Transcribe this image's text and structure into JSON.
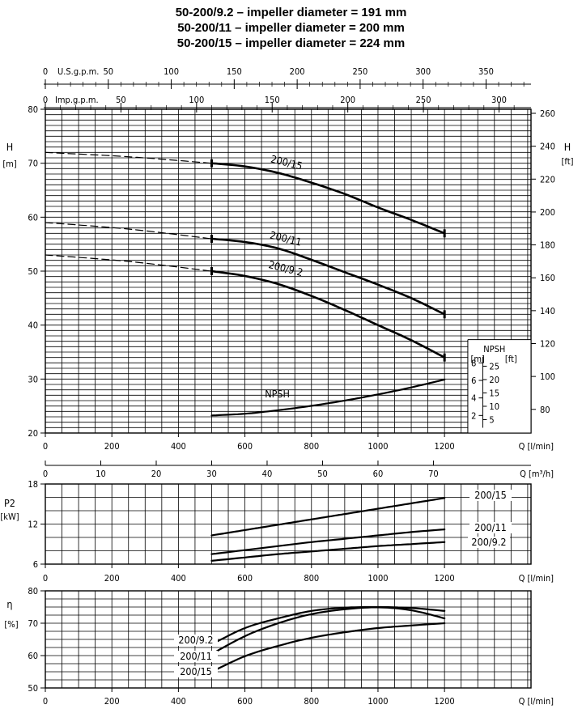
{
  "titles": [
    "50-200/9.2 – impeller diameter = 191 mm",
    "50-200/11 – impeller diameter = 200 mm",
    "50-200/15 – impeller diameter = 224 mm"
  ],
  "top_axes": {
    "usgpm": {
      "label": "U.S.g.p.m.",
      "zero": "0",
      "ticks": [
        50,
        100,
        150,
        200,
        250,
        300,
        350
      ]
    },
    "impgpm": {
      "label": "Imp.g.p.m.",
      "zero": "0",
      "ticks": [
        50,
        100,
        150,
        200,
        250,
        300
      ]
    }
  },
  "chart_data": [
    {
      "type": "line",
      "name": "head",
      "xlabel": "Q [l/min]",
      "ylabel": "H [m]",
      "ylabel_right": "H [ft]",
      "xlim": [
        0,
        1460
      ],
      "ylim": [
        20,
        80
      ],
      "x_ticks": [
        0,
        200,
        400,
        600,
        800,
        1000,
        1200
      ],
      "y_ticks": [
        20,
        30,
        40,
        50,
        60,
        70,
        80
      ],
      "y_ticks_ft": [
        80,
        100,
        120,
        140,
        160,
        180,
        200,
        220,
        240,
        260
      ],
      "m3h_ticks": [
        0,
        10,
        20,
        30,
        40,
        50,
        60,
        70
      ],
      "m3h_label": "Q [m³/h]",
      "grid": true,
      "series": [
        {
          "name": "200/15",
          "dashed_x": [
            0,
            500
          ],
          "x": [
            500,
            600,
            700,
            800,
            900,
            1000,
            1100,
            1200
          ],
          "y": [
            70,
            69.4,
            68.2,
            66.4,
            64.3,
            61.8,
            59.5,
            57
          ]
        },
        {
          "name": "200/11",
          "dashed_x": [
            0,
            500
          ],
          "x": [
            500,
            600,
            700,
            800,
            900,
            1000,
            1100,
            1200
          ],
          "y": [
            56,
            55.4,
            54.2,
            52.1,
            49.8,
            47.5,
            45,
            42
          ]
        },
        {
          "name": "200/9.2",
          "dashed_x": [
            0,
            500
          ],
          "x": [
            500,
            600,
            700,
            800,
            900,
            1000,
            1100,
            1200
          ],
          "y": [
            50,
            49.1,
            47.6,
            45.4,
            42.8,
            40,
            37.2,
            34
          ]
        },
        {
          "name": "NPSH",
          "x": [
            500,
            600,
            700,
            800,
            900,
            1000,
            1100,
            1200
          ],
          "npsh_m": [
            2,
            2.2,
            2.6,
            3.1,
            3.7,
            4.4,
            5.2,
            6.1
          ]
        }
      ],
      "shutoff_head": {
        "200/15": 72,
        "200/11": 59,
        "200/9.2": 53
      },
      "npsh_axis": {
        "title": "NPSH",
        "unit_m": "[m]",
        "unit_ft": "[ft]",
        "m_ticks": [
          2,
          4,
          6,
          8
        ],
        "ft_ticks": [
          5,
          10,
          15,
          20,
          25
        ]
      }
    },
    {
      "type": "line",
      "name": "power",
      "xlabel": "Q [l/min]",
      "ylabel": "P2",
      "yunit": "[kW]",
      "xlim": [
        0,
        1460
      ],
      "ylim": [
        6,
        18
      ],
      "x_ticks": [
        0,
        200,
        400,
        600,
        800,
        1000,
        1200
      ],
      "y_ticks": [
        6,
        12,
        18
      ],
      "grid": true,
      "series": [
        {
          "name": "200/15",
          "x": [
            500,
            600,
            700,
            800,
            900,
            1000,
            1100,
            1200
          ],
          "y": [
            10.3,
            11.1,
            11.9,
            12.7,
            13.5,
            14.3,
            15.1,
            15.9
          ]
        },
        {
          "name": "200/11",
          "x": [
            500,
            600,
            700,
            800,
            900,
            1000,
            1100,
            1200
          ],
          "y": [
            7.5,
            8.1,
            8.7,
            9.3,
            9.8,
            10.3,
            10.8,
            11.2
          ]
        },
        {
          "name": "200/9.2",
          "x": [
            500,
            600,
            700,
            800,
            900,
            1000,
            1100,
            1200
          ],
          "y": [
            6.5,
            7,
            7.5,
            7.9,
            8.3,
            8.7,
            9,
            9.3
          ]
        }
      ]
    },
    {
      "type": "line",
      "name": "efficiency",
      "xlabel": "Q [l/min]",
      "ylabel": "η",
      "yunit": "[%]",
      "xlim": [
        0,
        1460
      ],
      "ylim": [
        50,
        80
      ],
      "x_ticks": [
        0,
        200,
        400,
        600,
        800,
        1000,
        1200
      ],
      "y_ticks": [
        50,
        60,
        70,
        80
      ],
      "grid": true,
      "series": [
        {
          "name": "200/9.2",
          "x": [
            500,
            600,
            700,
            800,
            900,
            1000,
            1100,
            1200
          ],
          "y": [
            63.5,
            68.5,
            71.5,
            73.8,
            74.8,
            75,
            74.7,
            73.8
          ]
        },
        {
          "name": "200/11",
          "x": [
            500,
            600,
            700,
            800,
            900,
            1000,
            1100,
            1200
          ],
          "y": [
            60.5,
            66,
            70,
            72.8,
            74.3,
            74.9,
            74,
            71.5
          ]
        },
        {
          "name": "200/15",
          "x": [
            500,
            600,
            700,
            800,
            900,
            1000,
            1100,
            1200
          ],
          "y": [
            55,
            59.8,
            63,
            65.5,
            67.2,
            68.5,
            69.3,
            70
          ]
        }
      ]
    }
  ]
}
